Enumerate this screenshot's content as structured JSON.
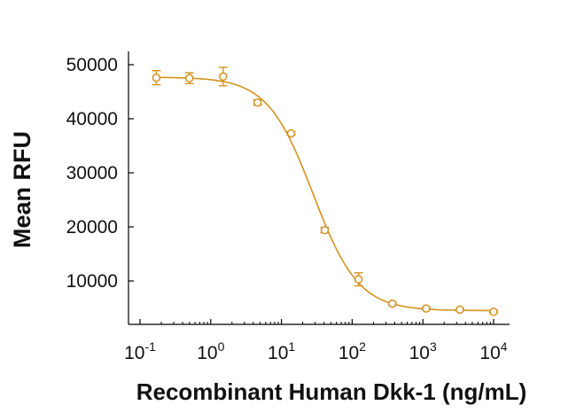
{
  "chart_data": {
    "type": "scatter",
    "title": "",
    "xlabel": "Recombinant Human Dkk-1 (ng/mL)",
    "ylabel": "Mean RFU",
    "x_scale": "log10",
    "xlim": [
      0.1,
      10000
    ],
    "ylim": [
      0,
      50000
    ],
    "x_ticks": [
      {
        "base": "10",
        "exp": "-1"
      },
      {
        "base": "10",
        "exp": "0"
      },
      {
        "base": "10",
        "exp": "1"
      },
      {
        "base": "10",
        "exp": "2"
      },
      {
        "base": "10",
        "exp": "3"
      },
      {
        "base": "10",
        "exp": "4"
      }
    ],
    "y_ticks": [
      "10000",
      "20000",
      "30000",
      "40000",
      "50000"
    ],
    "grid": false,
    "legend": "none",
    "series": [
      {
        "color": "#d4921f",
        "marker": "open-circle",
        "fit": "four-parameter-logistic",
        "points": [
          {
            "x": 0.17,
            "y": 47600,
            "err": 1300
          },
          {
            "x": 0.5,
            "y": 47500,
            "err": 1000
          },
          {
            "x": 1.5,
            "y": 47800,
            "err": 1700
          },
          {
            "x": 4.6,
            "y": 43000,
            "err": 500
          },
          {
            "x": 13.7,
            "y": 37300,
            "err": 300
          },
          {
            "x": 41,
            "y": 19400,
            "err": 500
          },
          {
            "x": 123,
            "y": 10300,
            "err": 1200
          },
          {
            "x": 370,
            "y": 5800,
            "err": 200
          },
          {
            "x": 1111,
            "y": 4900,
            "err": 200
          },
          {
            "x": 3333,
            "y": 4700,
            "err": 200
          },
          {
            "x": 10000,
            "y": 4300,
            "err": 200
          }
        ]
      }
    ]
  }
}
